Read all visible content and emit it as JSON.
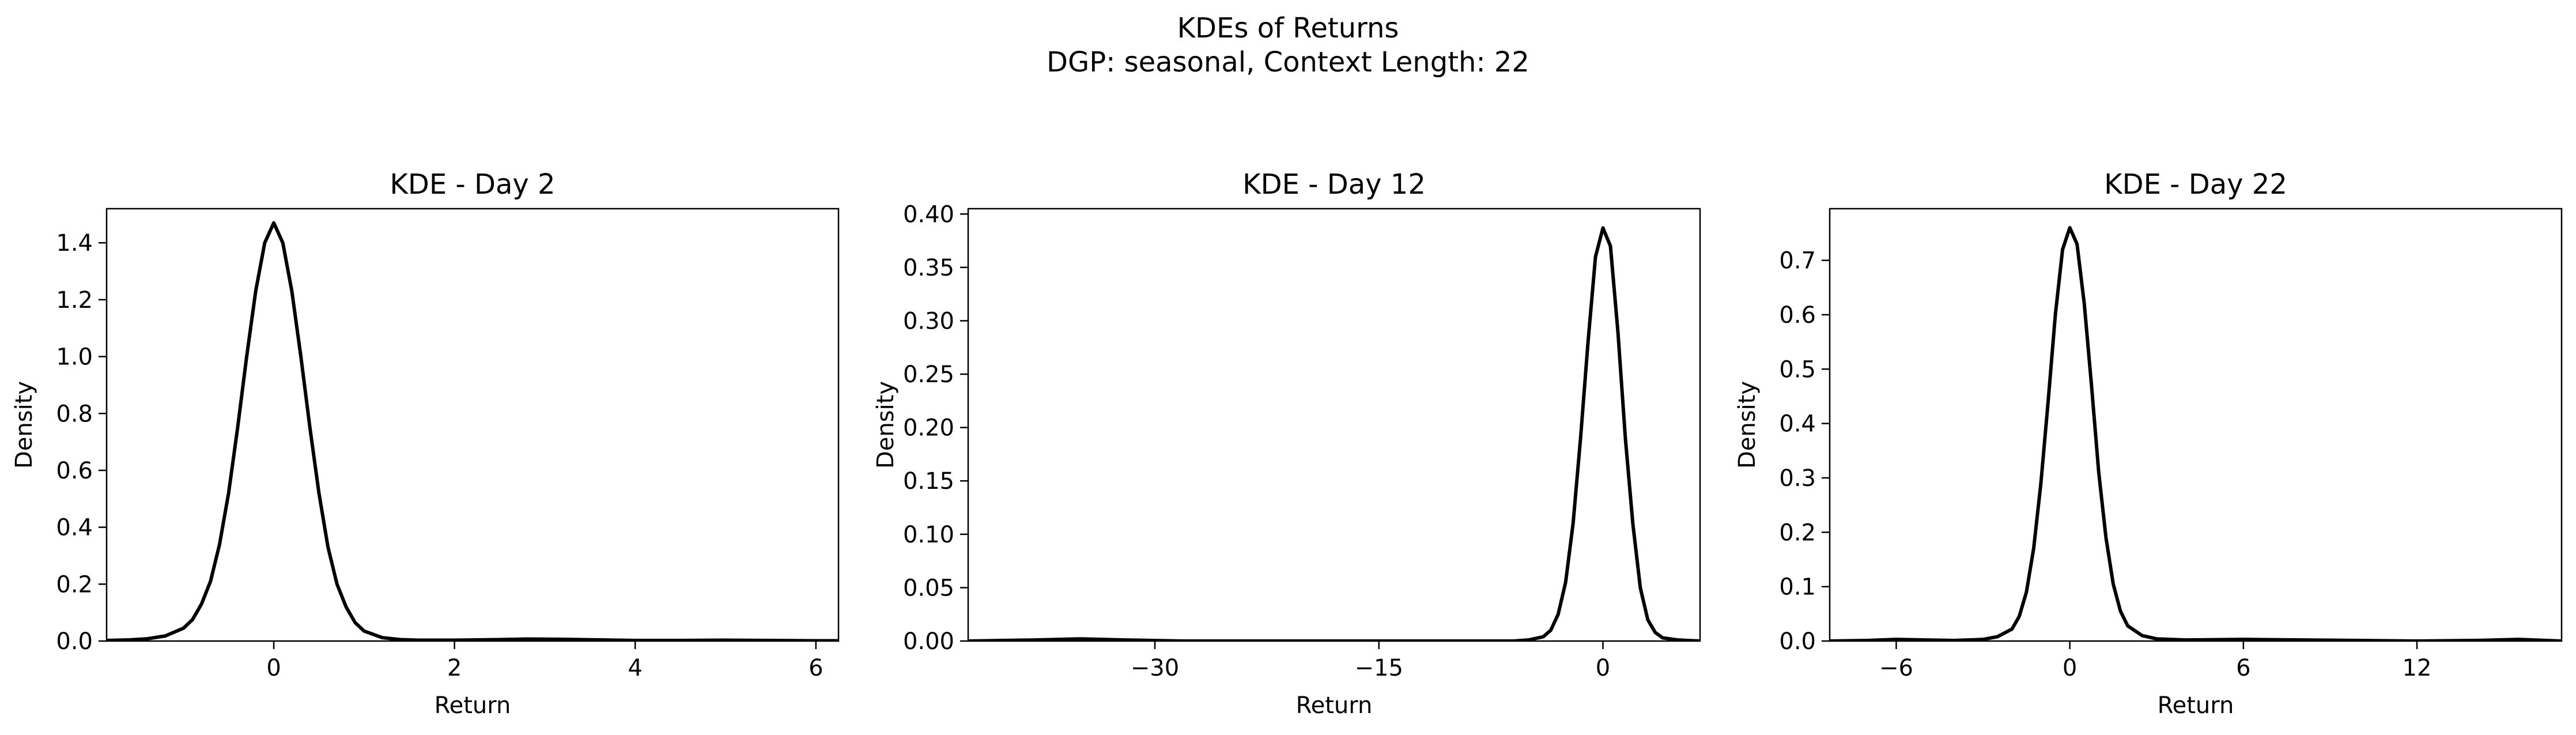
{
  "figure": {
    "title_line1": "KDEs of Returns",
    "title_line2": "DGP: seasonal, Context Length: 22"
  },
  "chart_data": [
    {
      "type": "line",
      "title": "KDE - Day 2",
      "xlabel": "Return",
      "ylabel": "Density",
      "xlim": [
        -1.85,
        6.25
      ],
      "ylim": [
        0,
        1.52
      ],
      "xticks": [
        0,
        2,
        4,
        6
      ],
      "yticks": [
        0.0,
        0.2,
        0.4,
        0.6,
        0.8,
        1.0,
        1.2,
        1.4
      ],
      "ytick_labels": [
        "0.0",
        "0.2",
        "0.4",
        "0.6",
        "0.8",
        "1.0",
        "1.2",
        "1.4"
      ],
      "x": [
        -1.85,
        -1.6,
        -1.4,
        -1.2,
        -1.0,
        -0.9,
        -0.8,
        -0.7,
        -0.6,
        -0.5,
        -0.4,
        -0.3,
        -0.2,
        -0.1,
        0.0,
        0.1,
        0.2,
        0.3,
        0.4,
        0.5,
        0.6,
        0.7,
        0.8,
        0.9,
        1.0,
        1.2,
        1.4,
        1.6,
        2.0,
        2.5,
        2.8,
        3.2,
        3.6,
        4.0,
        4.5,
        5.0,
        5.5,
        6.0,
        6.25
      ],
      "y": [
        0.002,
        0.004,
        0.008,
        0.018,
        0.045,
        0.075,
        0.13,
        0.21,
        0.34,
        0.52,
        0.75,
        1.0,
        1.23,
        1.4,
        1.47,
        1.4,
        1.23,
        1.0,
        0.75,
        0.52,
        0.33,
        0.2,
        0.12,
        0.065,
        0.035,
        0.012,
        0.005,
        0.003,
        0.003,
        0.005,
        0.007,
        0.006,
        0.004,
        0.002,
        0.002,
        0.003,
        0.002,
        0.001,
        0.001
      ],
      "grid": false,
      "color": "#000000"
    },
    {
      "type": "line",
      "title": "KDE - Day 12",
      "xlabel": "Return",
      "ylabel": "Density",
      "xlim": [
        -42.5,
        6.5
      ],
      "ylim": [
        0,
        0.405
      ],
      "xticks": [
        -30,
        -15,
        0
      ],
      "xtick_labels": [
        "−30",
        "−15",
        "0"
      ],
      "yticks": [
        0.0,
        0.05,
        0.1,
        0.15,
        0.2,
        0.25,
        0.3,
        0.35,
        0.4
      ],
      "ytick_labels": [
        "0.00",
        "0.05",
        "0.10",
        "0.15",
        "0.20",
        "0.25",
        "0.30",
        "0.35",
        "0.40"
      ],
      "x": [
        -42.5,
        -38,
        -35,
        -32,
        -28,
        -24,
        -20,
        -16,
        -12,
        -8,
        -6,
        -5,
        -4,
        -3.5,
        -3,
        -2.5,
        -2,
        -1.5,
        -1,
        -0.5,
        0,
        0.5,
        1,
        1.5,
        2,
        2.5,
        3,
        3.5,
        4,
        5,
        6.5
      ],
      "y": [
        0.0,
        0.001,
        0.002,
        0.001,
        0.0,
        0.0,
        0.0,
        0.0,
        0.0,
        0.0,
        0.0,
        0.001,
        0.004,
        0.01,
        0.025,
        0.055,
        0.11,
        0.19,
        0.28,
        0.36,
        0.387,
        0.37,
        0.29,
        0.19,
        0.11,
        0.05,
        0.02,
        0.008,
        0.003,
        0.001,
        0.0
      ],
      "grid": false,
      "color": "#000000"
    },
    {
      "type": "line",
      "title": "KDE - Day 22",
      "xlabel": "Return",
      "ylabel": "Density",
      "xlim": [
        -8.3,
        17.0
      ],
      "ylim": [
        0,
        0.795
      ],
      "xticks": [
        -6,
        0,
        6,
        12
      ],
      "xtick_labels": [
        "−6",
        "0",
        "6",
        "12"
      ],
      "yticks": [
        0.0,
        0.1,
        0.2,
        0.3,
        0.4,
        0.5,
        0.6,
        0.7
      ],
      "ytick_labels": [
        "0.0",
        "0.1",
        "0.2",
        "0.3",
        "0.4",
        "0.5",
        "0.6",
        "0.7"
      ],
      "x": [
        -8.3,
        -7,
        -6,
        -5,
        -4,
        -3,
        -2.5,
        -2,
        -1.75,
        -1.5,
        -1.25,
        -1,
        -0.75,
        -0.5,
        -0.25,
        0,
        0.25,
        0.5,
        0.75,
        1,
        1.25,
        1.5,
        1.75,
        2,
        2.5,
        3,
        4,
        6,
        8,
        10,
        12,
        14,
        15.5,
        17
      ],
      "y": [
        0.0,
        0.001,
        0.003,
        0.002,
        0.001,
        0.003,
        0.008,
        0.022,
        0.045,
        0.09,
        0.17,
        0.29,
        0.44,
        0.6,
        0.72,
        0.76,
        0.73,
        0.62,
        0.47,
        0.31,
        0.19,
        0.105,
        0.055,
        0.028,
        0.01,
        0.004,
        0.002,
        0.003,
        0.002,
        0.001,
        0.0,
        0.001,
        0.003,
        0.0
      ],
      "grid": false,
      "color": "#000000"
    }
  ]
}
